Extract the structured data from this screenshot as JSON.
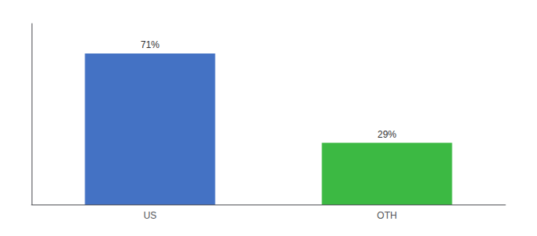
{
  "chart_data": {
    "type": "bar",
    "categories": [
      "US",
      "OTH"
    ],
    "values": [
      71,
      29
    ],
    "value_labels": [
      "71%",
      "29%"
    ],
    "colors": [
      "#4472c4",
      "#3cb943"
    ],
    "ylim": [
      0,
      85
    ],
    "grid": false,
    "tick_labels": "x",
    "data_labels": true
  }
}
